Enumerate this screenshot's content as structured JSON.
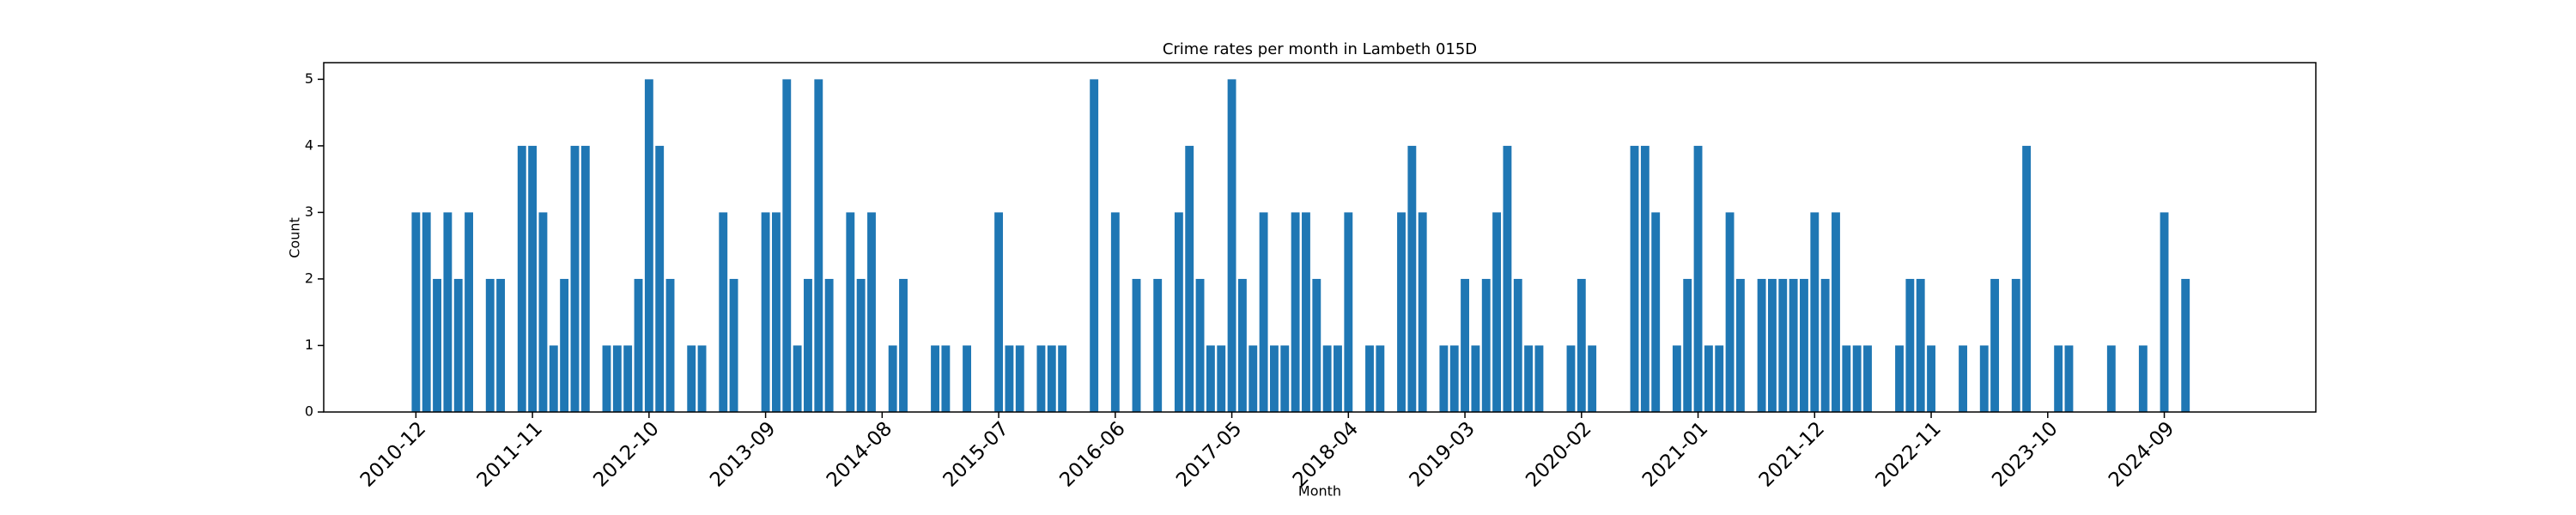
{
  "chart_data": {
    "type": "bar",
    "title": "Crime rates per month in Lambeth 015D",
    "xlabel": "Month",
    "ylabel": "Count",
    "color": "#1f77b4",
    "categories": [
      "2010-12",
      null,
      null,
      null,
      null,
      null,
      null,
      null,
      null,
      null,
      null,
      "2011-11",
      null,
      null,
      null,
      null,
      null,
      null,
      null,
      null,
      null,
      null,
      "2012-10",
      null,
      null,
      null,
      null,
      null,
      null,
      null,
      null,
      null,
      null,
      "2013-09",
      null,
      null,
      null,
      null,
      null,
      null,
      null,
      null,
      null,
      null,
      "2014-08",
      null,
      null,
      null,
      null,
      null,
      null,
      null,
      null,
      null,
      null,
      "2015-07",
      null,
      null,
      null,
      null,
      null,
      null,
      null,
      null,
      null,
      null,
      "2016-06",
      null,
      null,
      null,
      null,
      null,
      null,
      null,
      null,
      null,
      null,
      "2017-05",
      null,
      null,
      null,
      null,
      null,
      null,
      null,
      null,
      null,
      null,
      "2018-04",
      null,
      null,
      null,
      null,
      null,
      null,
      null,
      null,
      null,
      null,
      "2019-03",
      null,
      null,
      null,
      null,
      null,
      null,
      null,
      null,
      null,
      null,
      "2020-02",
      null,
      null,
      null,
      null,
      null,
      null,
      null,
      null,
      null,
      null,
      "2021-01",
      null,
      null,
      null,
      null,
      null,
      null,
      null,
      null,
      null,
      null,
      "2021-12",
      null,
      null,
      null,
      null,
      null,
      null,
      null,
      null,
      null,
      null,
      "2022-11",
      null,
      null,
      null,
      null,
      null,
      null,
      null,
      null,
      null,
      null,
      "2023-10",
      null,
      null,
      null,
      null,
      null,
      null,
      null,
      null,
      null,
      null,
      "2024-09",
      null,
      null
    ],
    "values": [
      3,
      3,
      2,
      3,
      2,
      3,
      0,
      2,
      2,
      0,
      4,
      4,
      3,
      1,
      2,
      4,
      4,
      0,
      1,
      1,
      1,
      2,
      5,
      4,
      2,
      0,
      1,
      1,
      0,
      3,
      2,
      0,
      0,
      3,
      3,
      5,
      1,
      2,
      5,
      2,
      0,
      3,
      2,
      3,
      0,
      1,
      2,
      0,
      0,
      1,
      1,
      0,
      1,
      0,
      0,
      3,
      1,
      1,
      0,
      1,
      1,
      1,
      0,
      0,
      5,
      0,
      3,
      0,
      2,
      0,
      2,
      0,
      3,
      4,
      2,
      1,
      1,
      5,
      2,
      1,
      3,
      1,
      1,
      3,
      3,
      2,
      1,
      1,
      3,
      0,
      1,
      1,
      0,
      3,
      4,
      3,
      0,
      1,
      1,
      2,
      1,
      2,
      3,
      4,
      2,
      1,
      1,
      0,
      0,
      1,
      2,
      1,
      0,
      0,
      0,
      4,
      4,
      3,
      0,
      1,
      2,
      4,
      1,
      1,
      3,
      2,
      0,
      2,
      2,
      2,
      2,
      2,
      3,
      2,
      3,
      1,
      1,
      1,
      0,
      0,
      1,
      2,
      2,
      1,
      0,
      0,
      1,
      0,
      1,
      2,
      0,
      2,
      4,
      0,
      0,
      1,
      1,
      0,
      0,
      0,
      1,
      0,
      0,
      1,
      0,
      3,
      0,
      2
    ],
    "ylim": [
      0,
      5.25
    ],
    "yticks": [
      0,
      1,
      2,
      3,
      4,
      5
    ],
    "grid": false
  }
}
